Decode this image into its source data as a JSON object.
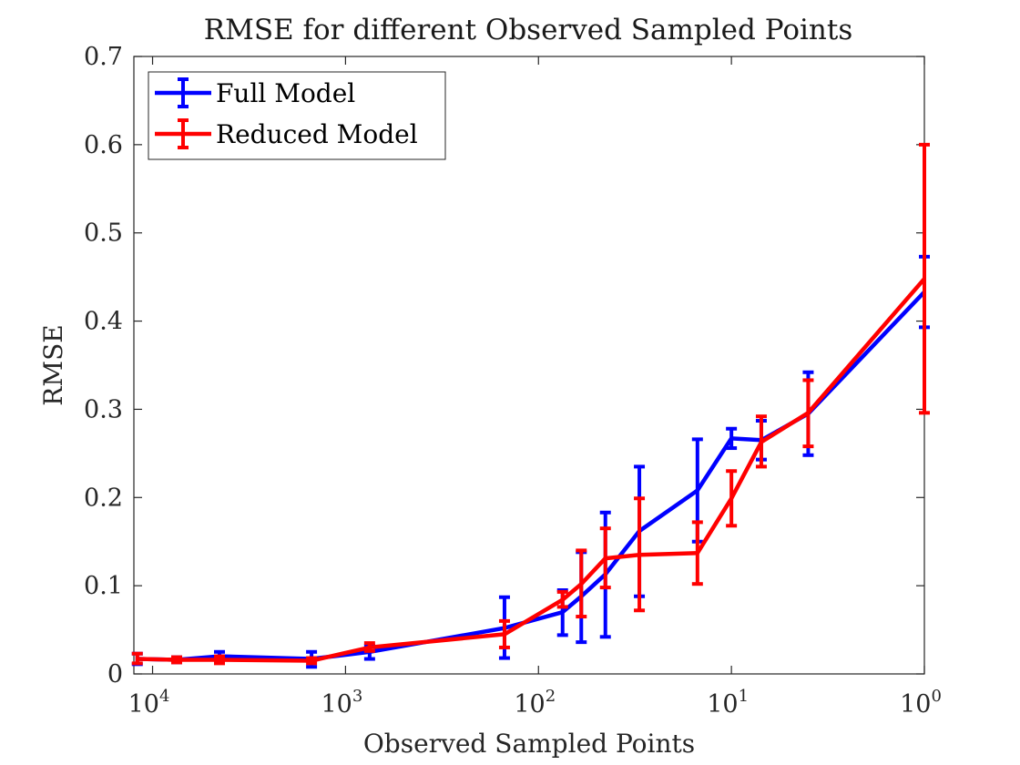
{
  "chart_data": {
    "type": "line",
    "title": "RMSE for different Observed Sampled Points",
    "xlabel": "Observed Sampled Points",
    "ylabel": "RMSE",
    "x_scale": "log",
    "x_reversed": true,
    "xlim": [
      12500,
      1
    ],
    "ylim": [
      0,
      0.7
    ],
    "grid": false,
    "legend_position": "top-left",
    "x_ticks": [
      {
        "value": 10000,
        "base": "10",
        "exp": "4"
      },
      {
        "value": 1000,
        "base": "10",
        "exp": "3"
      },
      {
        "value": 100,
        "base": "10",
        "exp": "2"
      },
      {
        "value": 10,
        "base": "10",
        "exp": "1"
      },
      {
        "value": 1,
        "base": "10",
        "exp": "0"
      }
    ],
    "y_ticks": [
      {
        "value": 0,
        "label": "0"
      },
      {
        "value": 0.1,
        "label": "0.1"
      },
      {
        "value": 0.2,
        "label": "0.2"
      },
      {
        "value": 0.3,
        "label": "0.3"
      },
      {
        "value": 0.4,
        "label": "0.4"
      },
      {
        "value": 0.5,
        "label": "0.5"
      },
      {
        "value": 0.6,
        "label": "0.6"
      },
      {
        "value": 0.7,
        "label": "0.7"
      }
    ],
    "series": [
      {
        "name": "Full Model",
        "color": "#0000ff",
        "points": [
          {
            "x": 12000,
            "y": 0.017,
            "lo": 0.011,
            "hi": 0.023
          },
          {
            "x": 7500,
            "y": 0.016,
            "lo": 0.013,
            "hi": 0.019
          },
          {
            "x": 4500,
            "y": 0.02,
            "lo": 0.015,
            "hi": 0.025
          },
          {
            "x": 1500,
            "y": 0.017,
            "lo": 0.008,
            "hi": 0.025
          },
          {
            "x": 750,
            "y": 0.025,
            "lo": 0.017,
            "hi": 0.032
          },
          {
            "x": 150,
            "y": 0.052,
            "lo": 0.018,
            "hi": 0.087
          },
          {
            "x": 75,
            "y": 0.07,
            "lo": 0.044,
            "hi": 0.095
          },
          {
            "x": 60,
            "y": 0.088,
            "lo": 0.036,
            "hi": 0.138
          },
          {
            "x": 45,
            "y": 0.113,
            "lo": 0.042,
            "hi": 0.183
          },
          {
            "x": 30,
            "y": 0.162,
            "lo": 0.088,
            "hi": 0.235
          },
          {
            "x": 15,
            "y": 0.208,
            "lo": 0.15,
            "hi": 0.266
          },
          {
            "x": 10,
            "y": 0.267,
            "lo": 0.256,
            "hi": 0.278
          },
          {
            "x": 7,
            "y": 0.265,
            "lo": 0.243,
            "hi": 0.287
          },
          {
            "x": 4,
            "y": 0.295,
            "lo": 0.248,
            "hi": 0.342
          },
          {
            "x": 1,
            "y": 0.433,
            "lo": 0.393,
            "hi": 0.473
          }
        ]
      },
      {
        "name": "Reduced Model",
        "color": "#ff0000",
        "points": [
          {
            "x": 12000,
            "y": 0.017,
            "lo": 0.012,
            "hi": 0.023
          },
          {
            "x": 7500,
            "y": 0.016,
            "lo": 0.013,
            "hi": 0.019
          },
          {
            "x": 4500,
            "y": 0.016,
            "lo": 0.012,
            "hi": 0.02
          },
          {
            "x": 1500,
            "y": 0.015,
            "lo": 0.012,
            "hi": 0.018
          },
          {
            "x": 750,
            "y": 0.03,
            "lo": 0.026,
            "hi": 0.035
          },
          {
            "x": 150,
            "y": 0.045,
            "lo": 0.03,
            "hi": 0.06
          },
          {
            "x": 75,
            "y": 0.084,
            "lo": 0.076,
            "hi": 0.093
          },
          {
            "x": 60,
            "y": 0.102,
            "lo": 0.065,
            "hi": 0.14
          },
          {
            "x": 45,
            "y": 0.131,
            "lo": 0.098,
            "hi": 0.165
          },
          {
            "x": 30,
            "y": 0.135,
            "lo": 0.072,
            "hi": 0.199
          },
          {
            "x": 15,
            "y": 0.137,
            "lo": 0.102,
            "hi": 0.172
          },
          {
            "x": 10,
            "y": 0.199,
            "lo": 0.168,
            "hi": 0.23
          },
          {
            "x": 7,
            "y": 0.263,
            "lo": 0.235,
            "hi": 0.292
          },
          {
            "x": 4,
            "y": 0.296,
            "lo": 0.258,
            "hi": 0.333
          },
          {
            "x": 1,
            "y": 0.448,
            "lo": 0.296,
            "hi": 0.6
          }
        ]
      }
    ]
  }
}
